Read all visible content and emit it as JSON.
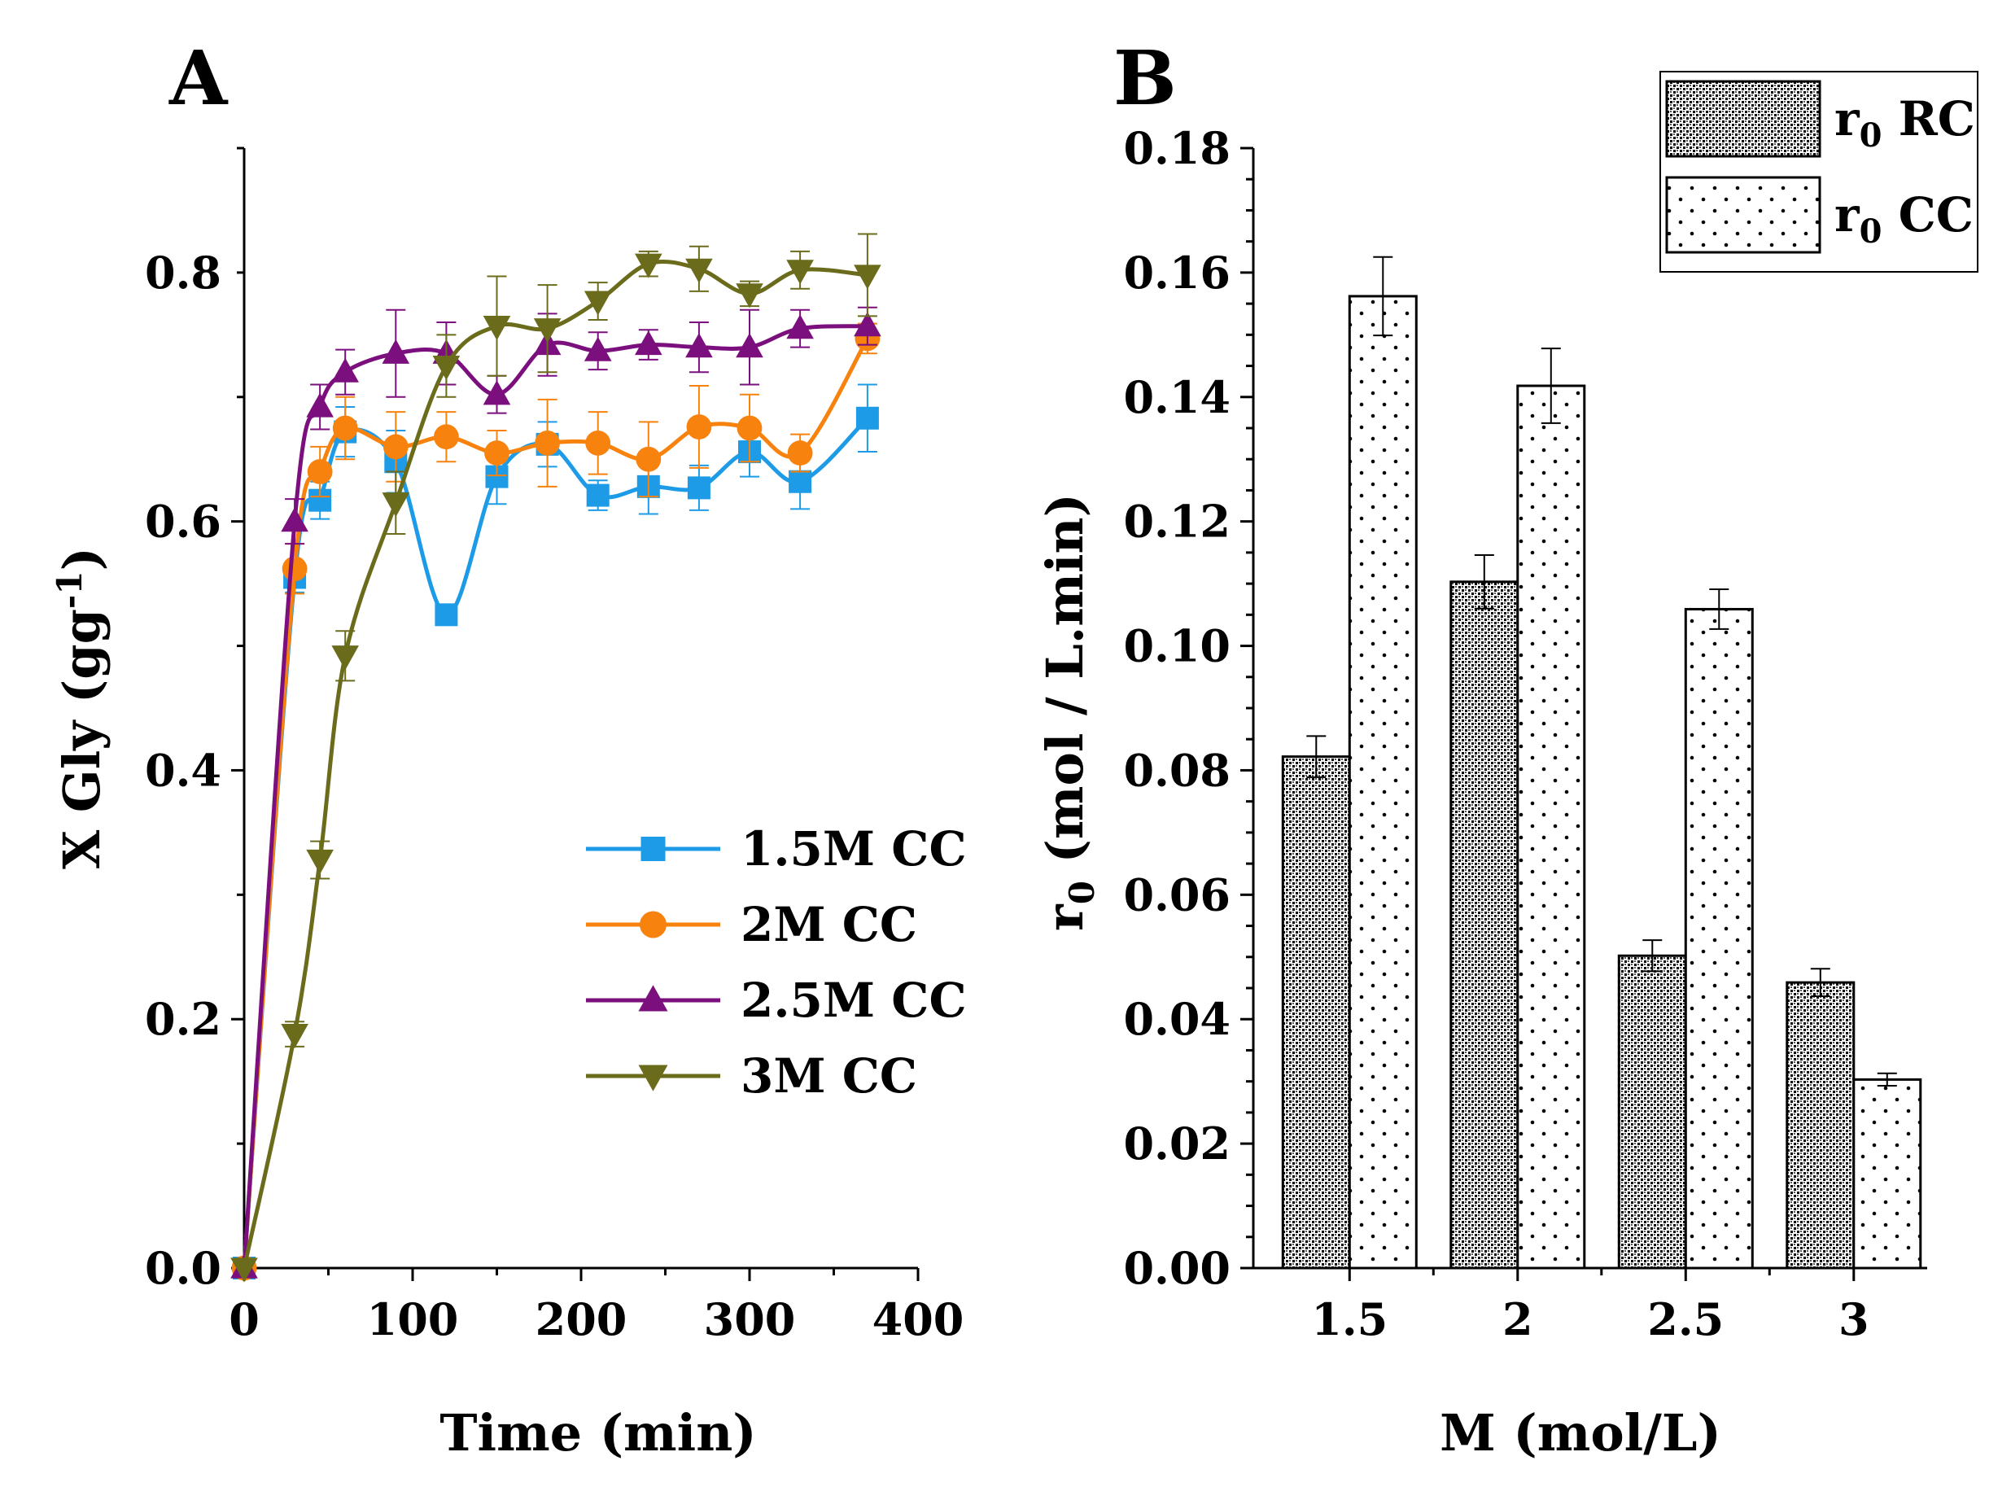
{
  "chart_data": [
    {
      "type": "line",
      "panel_label": "A",
      "title": "",
      "xlabel": "Time (min)",
      "ylabel_main": "X Gly (gg",
      "ylabel_sup": "-1",
      "ylabel_close": ")",
      "xlim": [
        0,
        400
      ],
      "ylim": [
        0,
        0.9
      ],
      "xticks": [
        "0",
        "100",
        "200",
        "300",
        "400"
      ],
      "xtick_values": [
        0,
        100,
        200,
        300,
        400
      ],
      "yticks": [
        "0.0",
        "0.2",
        "0.4",
        "0.6",
        "0.8"
      ],
      "ytick_values": [
        0,
        0.2,
        0.4,
        0.6,
        0.8
      ],
      "legend_position": "center-right",
      "x": [
        0,
        30,
        45,
        60,
        90,
        120,
        150,
        180,
        210,
        240,
        270,
        300,
        330,
        370
      ],
      "series": [
        {
          "name": "1.5M CC",
          "color": "#1E9BE6",
          "marker": "square",
          "values": [
            0.0,
            0.555,
            0.617,
            0.672,
            0.648,
            0.525,
            0.636,
            0.662,
            0.621,
            0.628,
            0.627,
            0.656,
            0.632,
            0.683
          ],
          "errors": [
            0,
            0.012,
            0.015,
            0.02,
            0.025,
            0.008,
            0.022,
            0.018,
            0.012,
            0.022,
            0.018,
            0.02,
            0.022,
            0.027
          ]
        },
        {
          "name": "2M CC",
          "color": "#F7830E",
          "marker": "circle",
          "values": [
            0.0,
            0.562,
            0.64,
            0.675,
            0.66,
            0.668,
            0.655,
            0.663,
            0.663,
            0.65,
            0.676,
            0.675,
            0.655,
            0.747
          ],
          "errors": [
            0,
            0.02,
            0.02,
            0.025,
            0.028,
            0.02,
            0.018,
            0.035,
            0.025,
            0.03,
            0.033,
            0.027,
            0.015,
            0.012
          ]
        },
        {
          "name": "2.5M CC",
          "color": "#7B0F7E",
          "marker": "triangle-up",
          "values": [
            0.0,
            0.6,
            0.692,
            0.72,
            0.735,
            0.735,
            0.702,
            0.742,
            0.737,
            0.742,
            0.74,
            0.74,
            0.755,
            0.757
          ],
          "errors": [
            0,
            0.018,
            0.018,
            0.018,
            0.035,
            0.025,
            0.015,
            0.025,
            0.015,
            0.012,
            0.02,
            0.03,
            0.015,
            0.015
          ]
        },
        {
          "name": "3M CC",
          "color": "#6B6B1C",
          "marker": "triangle-down",
          "values": [
            0.0,
            0.188,
            0.328,
            0.492,
            0.615,
            0.725,
            0.757,
            0.755,
            0.777,
            0.807,
            0.803,
            0.783,
            0.802,
            0.798
          ],
          "errors": [
            0,
            0.01,
            0.015,
            0.02,
            0.025,
            0.025,
            0.04,
            0.035,
            0.015,
            0.01,
            0.018,
            0.01,
            0.015,
            0.033
          ]
        }
      ]
    },
    {
      "type": "bar",
      "panel_label": "B",
      "title": "",
      "xlabel": "M (mol/L)",
      "ylabel_prefix": "r",
      "ylabel_sub": "0",
      "ylabel_rest": " (mol / L.min)",
      "ylim": [
        0,
        0.18
      ],
      "yticks": [
        "0.00",
        "0.02",
        "0.04",
        "0.06",
        "0.08",
        "0.10",
        "0.12",
        "0.14",
        "0.16",
        "0.18"
      ],
      "ytick_values": [
        0,
        0.02,
        0.04,
        0.06,
        0.08,
        0.1,
        0.12,
        0.14,
        0.16,
        0.18
      ],
      "categories": [
        "1.5",
        "2",
        "2.5",
        "3"
      ],
      "legend_position": "top-right",
      "series": [
        {
          "name_prefix": "r",
          "name_sub": "0",
          "name_rest": " RC",
          "pattern": "crosshatch",
          "values": [
            0.0822,
            0.1103,
            0.0502,
            0.0459
          ],
          "errors": [
            0.0033,
            0.0043,
            0.0025,
            0.0022
          ]
        },
        {
          "name_prefix": "r",
          "name_sub": "0",
          "name_rest": " CC",
          "pattern": "dots",
          "values": [
            0.1562,
            0.1418,
            0.1059,
            0.0303
          ],
          "errors": [
            0.0063,
            0.006,
            0.0032,
            0.001
          ]
        }
      ]
    }
  ]
}
